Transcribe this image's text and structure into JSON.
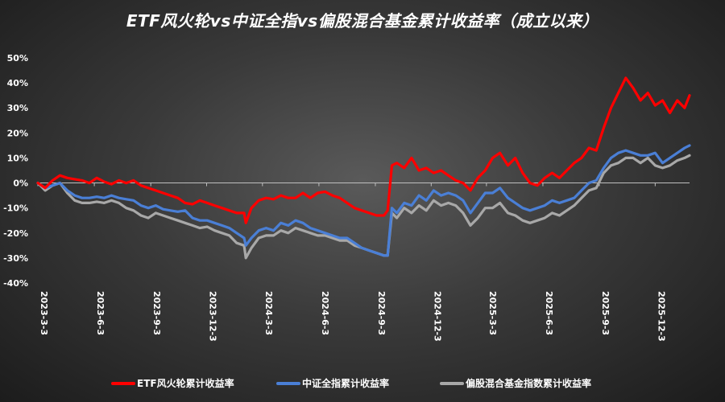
{
  "chart_data": {
    "type": "line",
    "title": "ETF风火轮vs中证全指vs偏股混合基金累计收益率（成立以来）",
    "ylim": [
      -0.4,
      0.5
    ],
    "yticks": [
      0.5,
      0.4,
      0.3,
      0.2,
      0.1,
      0.0,
      -0.1,
      -0.2,
      -0.3,
      -0.4
    ],
    "ytick_labels": [
      "50%",
      "40%",
      "30%",
      "20%",
      "10%",
      "0%",
      "-10%",
      "-20%",
      "-30%",
      "-40%"
    ],
    "xlim": [
      "2023-03-03",
      "2026-01-28"
    ],
    "xticks": [
      "2023-03-03",
      "2023-06-03",
      "2023-09-03",
      "2023-12-03",
      "2024-03-03",
      "2024-06-03",
      "2024-09-03",
      "2024-12-03",
      "2025-03-03",
      "2025-06-03",
      "2025-09-03",
      "2025-12-03"
    ],
    "xtick_labels": [
      "2023-3-3",
      "2023-6-3",
      "2023-9-3",
      "2023-12-3",
      "2024-3-3",
      "2024-6-3",
      "2024-9-3",
      "2024-12-3",
      "2025-3-3",
      "2025-6-3",
      "2025-9-3",
      "2025-12-3"
    ],
    "legend_position": "bottom",
    "x": [
      "2023-03-03",
      "2023-03-15",
      "2023-03-27",
      "2023-04-08",
      "2023-04-20",
      "2023-05-02",
      "2023-05-14",
      "2023-05-26",
      "2023-06-07",
      "2023-06-19",
      "2023-07-01",
      "2023-07-13",
      "2023-07-25",
      "2023-08-06",
      "2023-08-18",
      "2023-08-30",
      "2023-09-11",
      "2023-09-23",
      "2023-10-05",
      "2023-10-17",
      "2023-10-29",
      "2023-11-10",
      "2023-11-22",
      "2023-12-04",
      "2023-12-16",
      "2023-12-28",
      "2024-01-09",
      "2024-01-21",
      "2024-02-02",
      "2024-02-05",
      "2024-02-14",
      "2024-02-26",
      "2024-03-09",
      "2024-03-21",
      "2024-04-02",
      "2024-04-14",
      "2024-04-26",
      "2024-05-08",
      "2024-05-20",
      "2024-06-01",
      "2024-06-13",
      "2024-06-25",
      "2024-07-07",
      "2024-07-19",
      "2024-07-31",
      "2024-08-12",
      "2024-08-24",
      "2024-09-05",
      "2024-09-17",
      "2024-09-23",
      "2024-09-30",
      "2024-10-08",
      "2024-10-20",
      "2024-11-01",
      "2024-11-13",
      "2024-11-25",
      "2024-12-07",
      "2024-12-19",
      "2024-12-31",
      "2025-01-12",
      "2025-01-24",
      "2025-02-05",
      "2025-02-17",
      "2025-03-01",
      "2025-03-13",
      "2025-03-25",
      "2025-04-07",
      "2025-04-19",
      "2025-05-01",
      "2025-05-13",
      "2025-05-25",
      "2025-06-06",
      "2025-06-18",
      "2025-06-30",
      "2025-07-12",
      "2025-07-24",
      "2025-08-05",
      "2025-08-17",
      "2025-08-29",
      "2025-09-10",
      "2025-09-22",
      "2025-10-04",
      "2025-10-16",
      "2025-10-28",
      "2025-11-09",
      "2025-11-21",
      "2025-12-03",
      "2025-12-15",
      "2025-12-27",
      "2026-01-08",
      "2026-01-20",
      "2026-01-28"
    ],
    "series": [
      {
        "name": "ETF风火轮累计收益率",
        "color": "#ff0000",
        "values": [
          0.0,
          -0.02,
          0.01,
          0.03,
          0.02,
          0.015,
          0.01,
          0.0,
          0.02,
          0.005,
          -0.005,
          0.01,
          0.0,
          0.01,
          -0.01,
          -0.02,
          -0.03,
          -0.04,
          -0.05,
          -0.06,
          -0.08,
          -0.085,
          -0.07,
          -0.08,
          -0.09,
          -0.1,
          -0.11,
          -0.12,
          -0.12,
          -0.16,
          -0.1,
          -0.07,
          -0.06,
          -0.065,
          -0.05,
          -0.06,
          -0.06,
          -0.04,
          -0.06,
          -0.04,
          -0.035,
          -0.05,
          -0.06,
          -0.08,
          -0.1,
          -0.11,
          -0.12,
          -0.13,
          -0.13,
          -0.11,
          0.07,
          0.08,
          0.06,
          0.1,
          0.05,
          0.06,
          0.04,
          0.05,
          0.03,
          0.01,
          0.0,
          -0.03,
          0.02,
          0.05,
          0.1,
          0.12,
          0.07,
          0.1,
          0.04,
          0.0,
          -0.01,
          0.02,
          0.04,
          0.02,
          0.05,
          0.08,
          0.1,
          0.14,
          0.13,
          0.22,
          0.3,
          0.36,
          0.42,
          0.38,
          0.33,
          0.36,
          0.31,
          0.33,
          0.28,
          0.33,
          0.3,
          0.35
        ]
      },
      {
        "name": "中证全指累计收益率",
        "color": "#4a7fd6",
        "values": [
          0.0,
          -0.02,
          -0.01,
          0.0,
          -0.03,
          -0.05,
          -0.06,
          -0.06,
          -0.055,
          -0.06,
          -0.05,
          -0.06,
          -0.065,
          -0.07,
          -0.09,
          -0.1,
          -0.09,
          -0.105,
          -0.11,
          -0.115,
          -0.11,
          -0.14,
          -0.15,
          -0.15,
          -0.16,
          -0.17,
          -0.18,
          -0.2,
          -0.22,
          -0.25,
          -0.22,
          -0.19,
          -0.18,
          -0.19,
          -0.16,
          -0.17,
          -0.15,
          -0.16,
          -0.18,
          -0.19,
          -0.2,
          -0.21,
          -0.22,
          -0.22,
          -0.24,
          -0.26,
          -0.27,
          -0.28,
          -0.29,
          -0.29,
          -0.1,
          -0.12,
          -0.08,
          -0.09,
          -0.05,
          -0.07,
          -0.03,
          -0.05,
          -0.04,
          -0.05,
          -0.07,
          -0.12,
          -0.08,
          -0.04,
          -0.04,
          -0.02,
          -0.06,
          -0.08,
          -0.1,
          -0.11,
          -0.1,
          -0.09,
          -0.07,
          -0.08,
          -0.07,
          -0.06,
          -0.03,
          0.0,
          0.01,
          0.06,
          0.1,
          0.12,
          0.13,
          0.12,
          0.11,
          0.11,
          0.12,
          0.08,
          0.1,
          0.12,
          0.14,
          0.15
        ]
      },
      {
        "name": "偏股混合基金指数累计收益率",
        "color": "#a8a8a8",
        "values": [
          0.0,
          -0.03,
          -0.01,
          0.0,
          -0.04,
          -0.07,
          -0.08,
          -0.08,
          -0.075,
          -0.08,
          -0.07,
          -0.08,
          -0.1,
          -0.11,
          -0.13,
          -0.14,
          -0.12,
          -0.13,
          -0.14,
          -0.15,
          -0.16,
          -0.17,
          -0.18,
          -0.175,
          -0.19,
          -0.2,
          -0.21,
          -0.24,
          -0.25,
          -0.3,
          -0.26,
          -0.22,
          -0.21,
          -0.21,
          -0.19,
          -0.2,
          -0.18,
          -0.19,
          -0.2,
          -0.21,
          -0.21,
          -0.22,
          -0.23,
          -0.23,
          -0.25,
          -0.26,
          -0.27,
          -0.28,
          -0.29,
          -0.29,
          -0.12,
          -0.14,
          -0.1,
          -0.12,
          -0.09,
          -0.11,
          -0.07,
          -0.09,
          -0.08,
          -0.09,
          -0.12,
          -0.17,
          -0.14,
          -0.1,
          -0.1,
          -0.08,
          -0.12,
          -0.13,
          -0.15,
          -0.16,
          -0.15,
          -0.14,
          -0.12,
          -0.13,
          -0.11,
          -0.09,
          -0.06,
          -0.03,
          -0.02,
          0.04,
          0.07,
          0.08,
          0.1,
          0.1,
          0.08,
          0.1,
          0.07,
          0.06,
          0.07,
          0.09,
          0.1,
          0.11
        ]
      }
    ]
  }
}
